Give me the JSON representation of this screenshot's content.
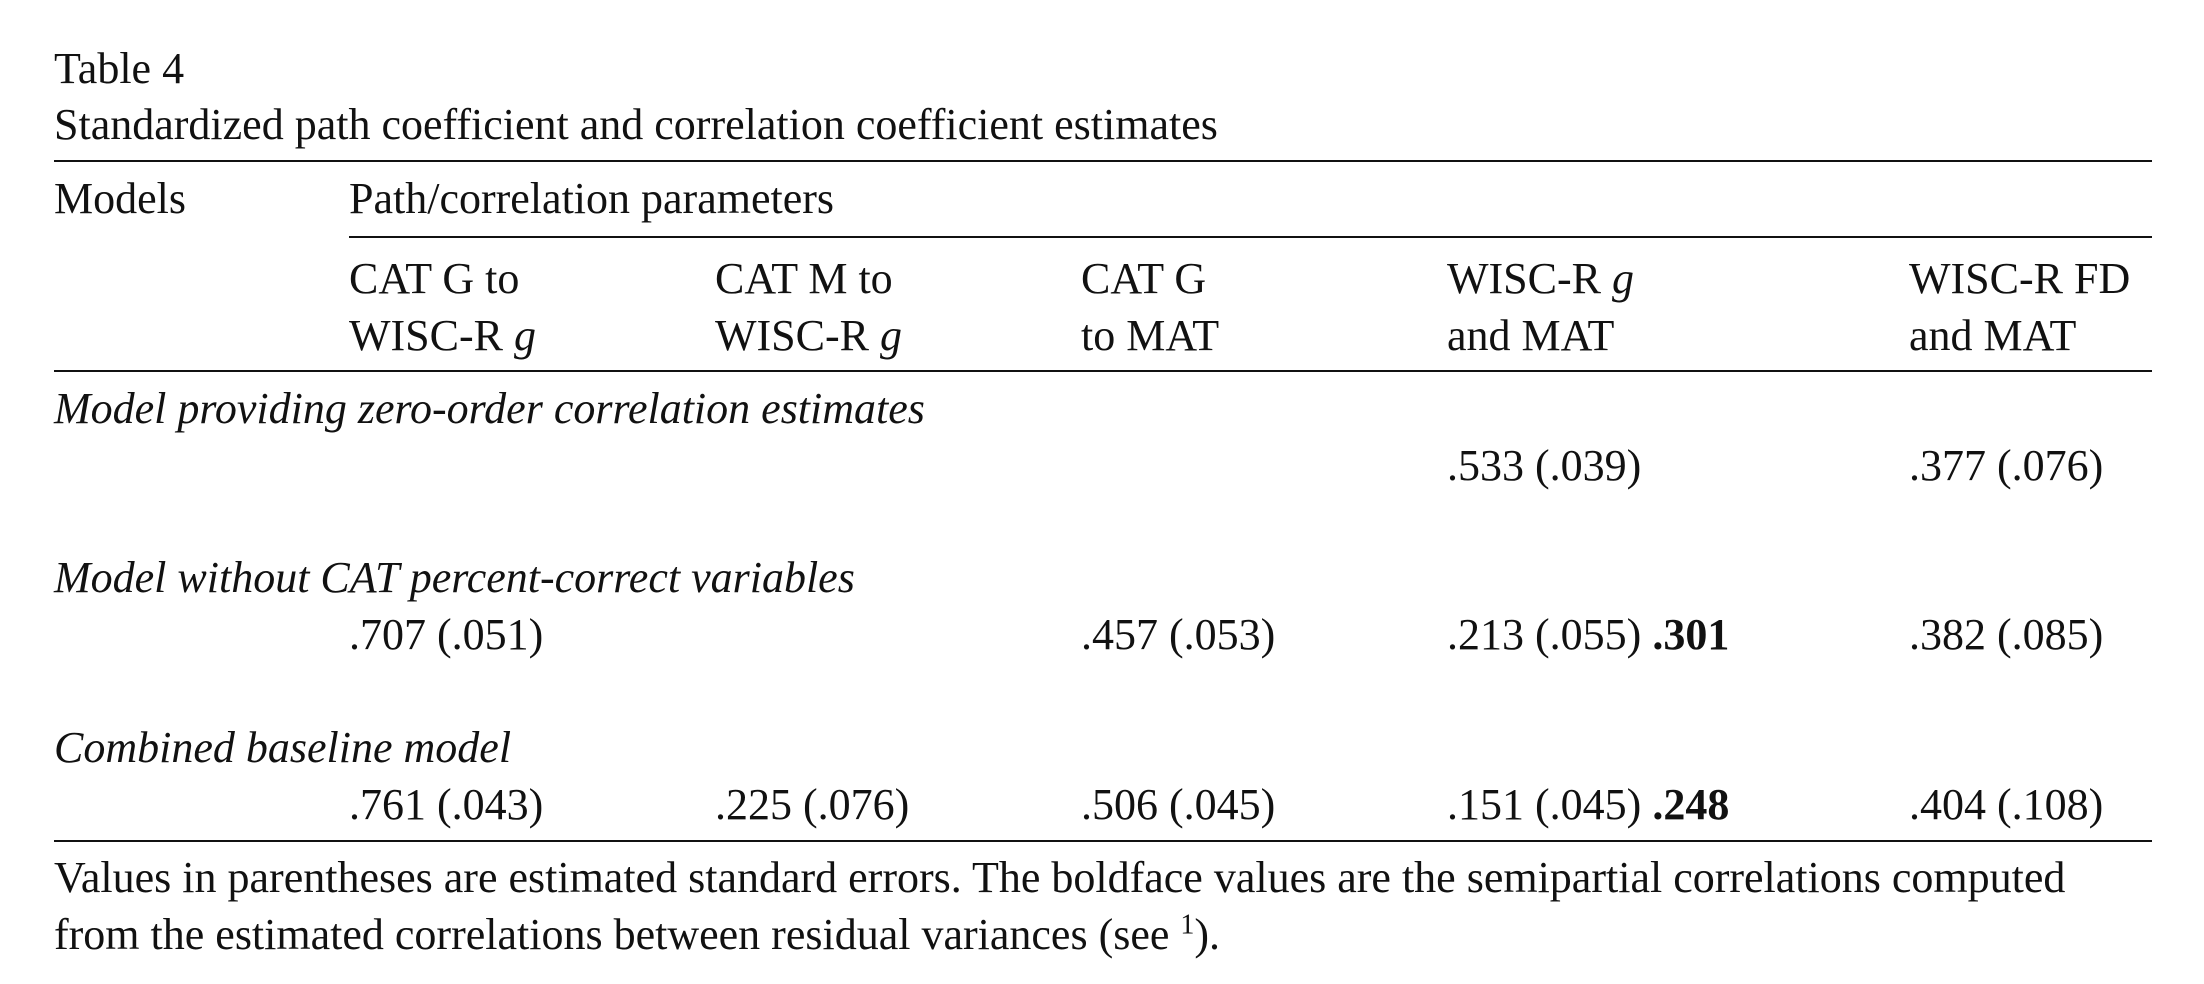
{
  "table": {
    "label": "Table 4",
    "caption": "Standardized path coefficient and correlation coefficient estimates",
    "models_header": "Models",
    "group_header": "Path/correlation parameters",
    "columns": [
      {
        "line1": "CAT G to",
        "line2_prefix": "WISC-R ",
        "line2_italic": "g",
        "line2_suffix": ""
      },
      {
        "line1": "CAT M to",
        "line2_prefix": "WISC-R ",
        "line2_italic": "g",
        "line2_suffix": ""
      },
      {
        "line1": "CAT G",
        "line2_prefix": "to MAT",
        "line2_italic": "",
        "line2_suffix": ""
      },
      {
        "line1_prefix": "WISC-R ",
        "line1_italic": "g",
        "line2_prefix": "and MAT"
      },
      {
        "line1": "WISC-R FD",
        "line2_prefix": "and MAT"
      }
    ],
    "rows": [
      {
        "model": "Model providing zero-order correlation estimates",
        "values": [
          "",
          "",
          "",
          ".533 (.039)",
          ".377 (.076)"
        ],
        "bold": [
          "",
          "",
          "",
          "",
          ""
        ]
      },
      {
        "model": "Model without CAT percent-correct variables",
        "values": [
          ".707 (.051)",
          "",
          ".457 (.053)",
          ".213 (.055)",
          ".382 (.085)"
        ],
        "bold": [
          "",
          "",
          "",
          ".301",
          ""
        ]
      },
      {
        "model": "Combined baseline model",
        "values": [
          ".761 (.043)",
          ".225 (.076)",
          ".506 (.045)",
          ".151 (.045)",
          ".404 (.108)"
        ],
        "bold": [
          "",
          "",
          "",
          ".248",
          ""
        ]
      }
    ],
    "note_line1": "Values in parentheses are estimated standard errors. The boldface values are the semipartial correlations computed",
    "note_line2_text": "from the estimated correlations between residual variances (see ",
    "note_line2_sup": "1",
    "note_line2_end": ")."
  }
}
